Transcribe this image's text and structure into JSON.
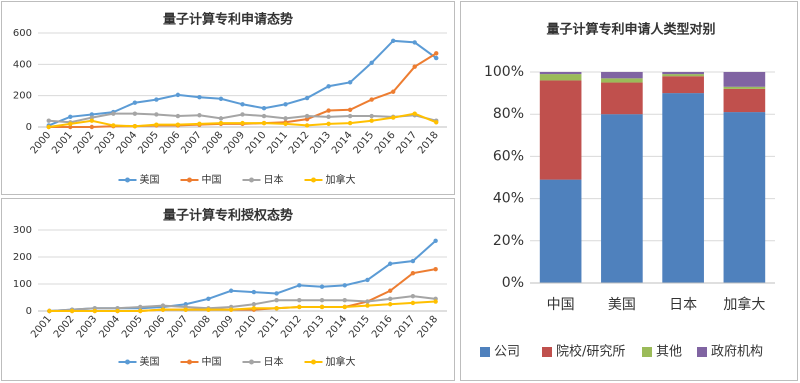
{
  "chart_data": [
    {
      "type": "line",
      "title": "量子计算专利申请态势",
      "categories": [
        "2000",
        "2001",
        "2002",
        "2003",
        "2004",
        "2005",
        "2006",
        "2007",
        "2008",
        "2009",
        "2010",
        "2011",
        "2012",
        "2013",
        "2014",
        "2015",
        "2016",
        "2017",
        "2018"
      ],
      "ylim": [
        0,
        600
      ],
      "yticks": [
        0,
        200,
        400,
        600
      ],
      "grid": true,
      "series": [
        {
          "name": "美国",
          "color": "#5b9bd5",
          "values": [
            10,
            65,
            80,
            95,
            155,
            175,
            205,
            190,
            180,
            145,
            120,
            145,
            185,
            260,
            285,
            410,
            550,
            540,
            440
          ]
        },
        {
          "name": "中国",
          "color": "#ed7d31",
          "values": [
            0,
            0,
            0,
            5,
            5,
            10,
            10,
            15,
            20,
            20,
            25,
            30,
            50,
            105,
            110,
            175,
            225,
            385,
            470
          ]
        },
        {
          "name": "日本",
          "color": "#a5a5a5",
          "values": [
            40,
            30,
            60,
            85,
            85,
            80,
            70,
            75,
            55,
            80,
            70,
            55,
            70,
            65,
            70,
            70,
            65,
            75,
            40
          ]
        },
        {
          "name": "加拿大",
          "color": "#ffc000",
          "values": [
            0,
            20,
            40,
            10,
            5,
            15,
            15,
            20,
            25,
            25,
            25,
            20,
            10,
            20,
            25,
            40,
            60,
            85,
            30
          ]
        }
      ]
    },
    {
      "type": "line",
      "title": "量子计算专利授权态势",
      "categories": [
        "2001",
        "2002",
        "2003",
        "2004",
        "2005",
        "2006",
        "2007",
        "2008",
        "2009",
        "2010",
        "2011",
        "2012",
        "2013",
        "2014",
        "2015",
        "2016",
        "2017",
        "2018"
      ],
      "ylim": [
        0,
        300
      ],
      "yticks": [
        0,
        100,
        200,
        300
      ],
      "grid": true,
      "series": [
        {
          "name": "美国",
          "color": "#5b9bd5",
          "values": [
            0,
            5,
            10,
            10,
            10,
            15,
            25,
            45,
            75,
            70,
            65,
            95,
            90,
            95,
            115,
            175,
            185,
            260
          ]
        },
        {
          "name": "中国",
          "color": "#ed7d31",
          "values": [
            0,
            0,
            0,
            0,
            0,
            5,
            5,
            5,
            5,
            5,
            10,
            15,
            15,
            15,
            35,
            75,
            140,
            155
          ]
        },
        {
          "name": "日本",
          "color": "#a5a5a5",
          "values": [
            0,
            5,
            10,
            10,
            15,
            20,
            15,
            10,
            15,
            25,
            40,
            40,
            40,
            40,
            35,
            45,
            55,
            45
          ]
        },
        {
          "name": "加拿大",
          "color": "#ffc000",
          "values": [
            0,
            0,
            0,
            0,
            0,
            5,
            5,
            5,
            5,
            10,
            10,
            15,
            15,
            15,
            20,
            25,
            30,
            35
          ]
        }
      ]
    },
    {
      "type": "stacked_bar",
      "title": "量子计算专利申请人类型对别",
      "categories": [
        "中国",
        "美国",
        "日本",
        "加拿大"
      ],
      "ylim": [
        0,
        100
      ],
      "yticks": [
        {
          "value": 0,
          "label": "0%"
        },
        {
          "value": 20,
          "label": "20%"
        },
        {
          "value": 40,
          "label": "40%"
        },
        {
          "value": 60,
          "label": "60%"
        },
        {
          "value": 80,
          "label": "80%"
        },
        {
          "value": 100,
          "label": "100%"
        }
      ],
      "grid": true,
      "series": [
        {
          "name": "公司",
          "color": "#4f81bd",
          "values": [
            49,
            80,
            90,
            81
          ]
        },
        {
          "name": "院校/研究所",
          "color": "#c0504d",
          "values": [
            47,
            15,
            8,
            11
          ]
        },
        {
          "name": "其他",
          "color": "#9bbb59",
          "values": [
            3,
            2,
            1,
            1
          ]
        },
        {
          "name": "政府机构",
          "color": "#8064a2",
          "values": [
            1,
            3,
            1,
            7
          ]
        }
      ]
    }
  ]
}
